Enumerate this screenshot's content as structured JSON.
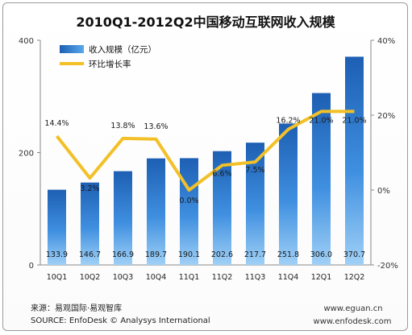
{
  "chart_data": {
    "type": "bar",
    "title": "2010Q1-2012Q2中国移动互联网收入规模",
    "categories": [
      "10Q1",
      "10Q2",
      "10Q3",
      "10Q4",
      "11Q1",
      "11Q2",
      "11Q3",
      "11Q4",
      "12Q1",
      "12Q2"
    ],
    "series": [
      {
        "name": "收入规模（亿元）",
        "type": "bar",
        "axis": "left",
        "color": "#1f6fc4",
        "values": [
          133.9,
          146.7,
          166.9,
          189.7,
          190.1,
          202.6,
          217.7,
          251.8,
          306.0,
          370.7
        ],
        "labels": [
          "133.9",
          "146.7",
          "166.9",
          "189.7",
          "190.1",
          "202.6",
          "217.7",
          "251.8",
          "306.0",
          "370.7"
        ]
      },
      {
        "name": "环比增长率",
        "type": "line",
        "axis": "right",
        "color": "#f2c028",
        "values": [
          14.4,
          3.2,
          13.8,
          13.6,
          0.0,
          6.6,
          7.5,
          16.2,
          21.0,
          21.0
        ],
        "labels": [
          "14.4%",
          "3.2%",
          "13.8%",
          "13.6%",
          "0.0%",
          "6.6%",
          "7.5%",
          "16.2%",
          "21.0%",
          "21.0%"
        ]
      }
    ],
    "y_left": {
      "min": 0,
      "max": 400,
      "ticks": [
        "0",
        "200",
        "400"
      ]
    },
    "y_right": {
      "min": -20,
      "max": 40,
      "ticks": [
        "-20%",
        "0%",
        "20%",
        "40%"
      ]
    },
    "grid": false,
    "legend_position": "top-left"
  },
  "footer": {
    "source_cn": "来源：易观国际·易观智库",
    "source_en": "SOURCE: EnfoDesk © Analysys International",
    "url": "www.eguan.cn",
    "url2": "www.enfodesk.com"
  }
}
